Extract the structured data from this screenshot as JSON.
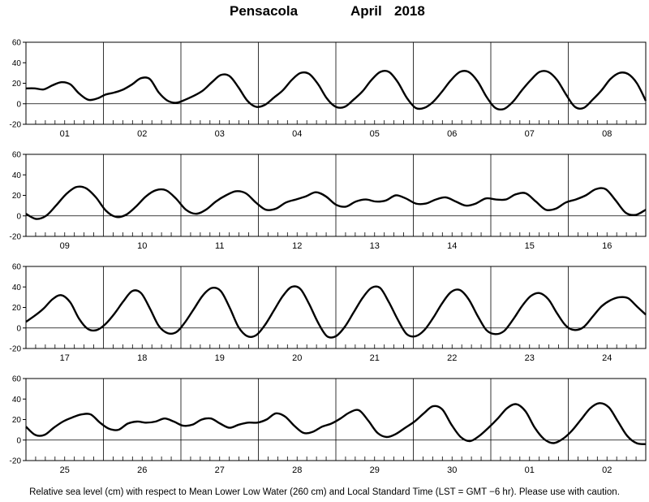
{
  "title": {
    "station": "Pensacola",
    "month": "April",
    "year": "2018"
  },
  "footer": "Relative sea level (cm) with respect to Mean Lower Low Water (260 cm) and Local Standard Time (LST = GMT −6 hr). Please use with caution.",
  "chart_data": [
    {
      "type": "line",
      "days": [
        "01",
        "02",
        "03",
        "04",
        "05",
        "06",
        "07",
        "08"
      ],
      "ylim": [
        -20,
        60
      ],
      "yticks": [
        -20,
        0,
        20,
        40,
        60
      ],
      "xlabel": "",
      "ylabel": "",
      "series": [
        {
          "values": [
            15,
            15,
            14,
            18,
            21,
            19,
            10,
            4,
            5,
            9,
            11,
            14,
            19,
            25,
            24,
            11,
            3,
            1,
            4,
            8,
            13,
            21,
            28,
            27,
            16,
            3,
            -3,
            -1,
            6,
            13,
            23,
            30,
            29,
            19,
            5,
            -3,
            -3,
            4,
            12,
            23,
            31,
            31,
            21,
            6,
            -4,
            -4,
            2,
            12,
            23,
            31,
            31,
            22,
            7,
            -4,
            -5,
            2,
            13,
            23,
            31,
            31,
            23,
            9,
            -3,
            -4,
            4,
            13,
            24,
            30,
            29,
            20,
            3
          ]
        }
      ]
    },
    {
      "type": "line",
      "days": [
        "09",
        "10",
        "11",
        "12",
        "13",
        "14",
        "15",
        "16"
      ],
      "ylim": [
        -20,
        60
      ],
      "yticks": [
        -20,
        0,
        20,
        40,
        60
      ],
      "xlabel": "",
      "ylabel": "",
      "series": [
        {
          "values": [
            2,
            -3,
            0,
            10,
            21,
            28,
            27,
            18,
            5,
            -1,
            1,
            9,
            19,
            25,
            25,
            17,
            6,
            2,
            6,
            14,
            20,
            24,
            22,
            13,
            6,
            7,
            13,
            16,
            19,
            23,
            19,
            11,
            9,
            14,
            16,
            14,
            15,
            20,
            17,
            12,
            12,
            16,
            18,
            14,
            10,
            12,
            17,
            16,
            16,
            21,
            22,
            14,
            6,
            7,
            13,
            16,
            20,
            26,
            26,
            15,
            3,
            1,
            6
          ]
        }
      ]
    },
    {
      "type": "line",
      "days": [
        "17",
        "18",
        "19",
        "20",
        "21",
        "22",
        "23",
        "24"
      ],
      "ylim": [
        -20,
        60
      ],
      "yticks": [
        -20,
        0,
        20,
        40,
        60
      ],
      "xlabel": "",
      "ylabel": "",
      "series": [
        {
          "values": [
            6,
            12,
            19,
            28,
            32,
            25,
            9,
            -1,
            -2,
            4,
            14,
            26,
            36,
            34,
            19,
            2,
            -5,
            -4,
            6,
            19,
            32,
            39,
            36,
            20,
            1,
            -8,
            -7,
            3,
            17,
            31,
            40,
            38,
            23,
            5,
            -8,
            -8,
            1,
            15,
            29,
            39,
            39,
            25,
            8,
            -6,
            -8,
            -2,
            10,
            24,
            35,
            37,
            28,
            12,
            -2,
            -6,
            -3,
            8,
            21,
            31,
            34,
            28,
            14,
            2,
            -2,
            1,
            11,
            21,
            27,
            30,
            29,
            21,
            13
          ]
        }
      ]
    },
    {
      "type": "line",
      "days": [
        "25",
        "26",
        "27",
        "28",
        "29",
        "30",
        "01",
        "02"
      ],
      "ylim": [
        -20,
        60
      ],
      "yticks": [
        -20,
        0,
        20,
        40,
        60
      ],
      "xlabel": "",
      "ylabel": "",
      "series": [
        {
          "values": [
            13,
            5,
            5,
            12,
            18,
            22,
            25,
            25,
            17,
            11,
            10,
            16,
            18,
            17,
            18,
            21,
            18,
            14,
            15,
            20,
            21,
            16,
            12,
            15,
            17,
            17,
            20,
            26,
            23,
            14,
            7,
            8,
            13,
            16,
            21,
            27,
            29,
            19,
            7,
            3,
            6,
            12,
            18,
            26,
            33,
            30,
            15,
            3,
            -1,
            4,
            12,
            21,
            31,
            35,
            28,
            12,
            1,
            -3,
            1,
            9,
            20,
            31,
            36,
            32,
            18,
            4,
            -3,
            -4
          ]
        }
      ]
    }
  ]
}
